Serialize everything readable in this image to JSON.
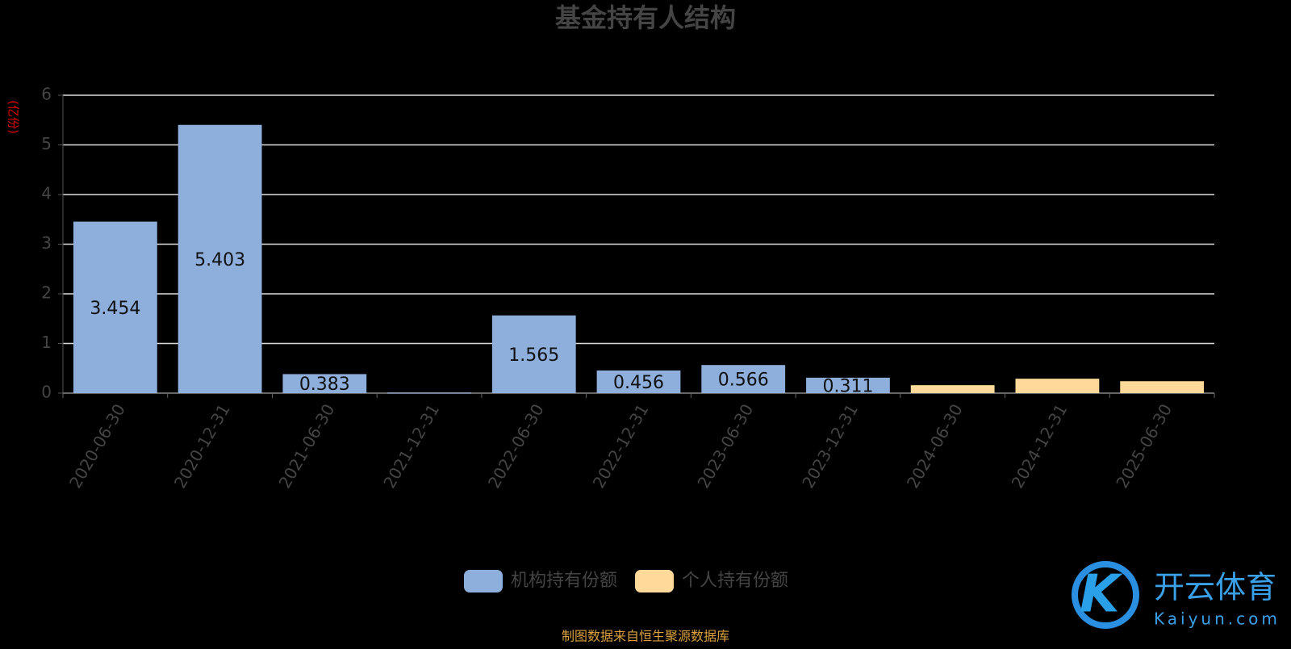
{
  "chart_data": {
    "type": "stacked-bar",
    "title": "基金持有人结构",
    "y_label": "(亿份)",
    "categories": [
      "2020-06-30",
      "2020-12-31",
      "2021-06-30",
      "2021-12-31",
      "2022-06-30",
      "2022-12-31",
      "2023-06-30",
      "2023-12-31",
      "2024-06-30",
      "2024-12-31",
      "2025-06-30"
    ],
    "series": [
      {
        "name": "机构持有份额",
        "color": "#8eaedb",
        "values": [
          3.454,
          5.403,
          0.383,
          0.01,
          1.565,
          0.456,
          0.566,
          0.311,
          null,
          null,
          null
        ],
        "value_labels": [
          "3.454",
          "5.403",
          "0.383",
          null,
          "1.565",
          "0.456",
          "0.566",
          "0.311",
          null,
          null,
          null
        ]
      },
      {
        "name": "个人持有份额",
        "color": "#ffd99a",
        "values": [
          null,
          null,
          null,
          null,
          null,
          null,
          null,
          null,
          0.16,
          0.29,
          0.24
        ]
      }
    ],
    "ylim": [
      0,
      6
    ],
    "yticks": [
      0,
      1,
      2,
      3,
      4,
      5,
      6
    ],
    "grid": true,
    "source": "制图数据来自恒生聚源数据库",
    "watermark": {
      "name": "开云体育",
      "url": "Kaiyun.com"
    }
  }
}
